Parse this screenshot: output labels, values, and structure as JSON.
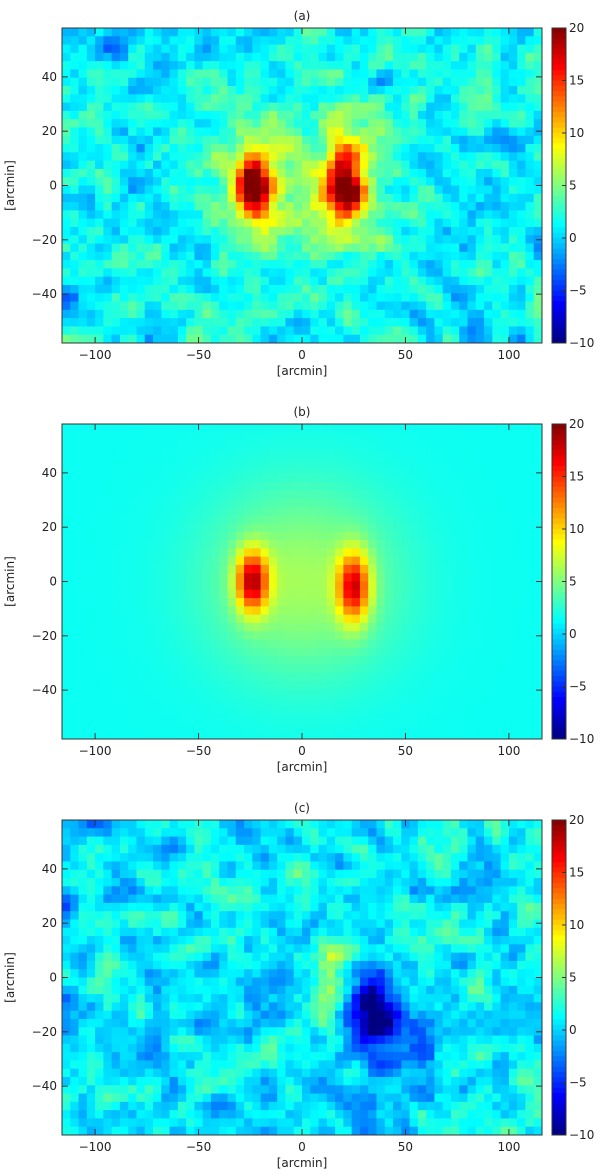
{
  "chart_data": [
    {
      "type": "heatmap",
      "title": "(a)",
      "xlabel": "[arcmin]",
      "ylabel": "[arcmin]",
      "xlim": [
        -116,
        116
      ],
      "ylim": [
        -58,
        58
      ],
      "x_ticks": [
        -100,
        -50,
        0,
        50,
        100
      ],
      "y_ticks": [
        -40,
        -20,
        0,
        20,
        40
      ],
      "colorbar": {
        "min": -10,
        "max": 20,
        "ticks": [
          20,
          15,
          10,
          5,
          0,
          -5,
          -10
        ],
        "colormap": "jet"
      },
      "background_level": 1.0,
      "noise_amplitude": 3.5,
      "noise_seed": 11,
      "sources": [
        {
          "x": -24,
          "y": 0,
          "peak": 19,
          "sx": 6,
          "sy": 8
        },
        {
          "x": 21,
          "y": 0,
          "peak": 18,
          "sx": 7,
          "sy": 10
        },
        {
          "x": 0,
          "y": 2,
          "peak": 5,
          "sx": 30,
          "sy": 22
        }
      ]
    },
    {
      "type": "heatmap",
      "title": "(b)",
      "xlabel": "[arcmin]",
      "ylabel": "[arcmin]",
      "xlim": [
        -116,
        116
      ],
      "ylim": [
        -58,
        58
      ],
      "x_ticks": [
        -100,
        -50,
        0,
        50,
        100
      ],
      "y_ticks": [
        -40,
        -20,
        0,
        20,
        40
      ],
      "colorbar": {
        "min": -10,
        "max": 20,
        "ticks": [
          20,
          15,
          10,
          5,
          0,
          -5,
          -10
        ],
        "colormap": "jet"
      },
      "background_level": 1.6,
      "noise_amplitude": 0,
      "noise_seed": 0,
      "sources": [
        {
          "x": -24,
          "y": 0,
          "peak": 14,
          "sx": 5.5,
          "sy": 8
        },
        {
          "x": 25,
          "y": -2,
          "peak": 13,
          "sx": 5.5,
          "sy": 9
        },
        {
          "x": 0,
          "y": 0,
          "peak": 4.5,
          "sx": 32,
          "sy": 24
        }
      ]
    },
    {
      "type": "heatmap",
      "title": "(c)",
      "xlabel": "[arcmin]",
      "ylabel": "[arcmin]",
      "xlim": [
        -116,
        116
      ],
      "ylim": [
        -58,
        58
      ],
      "x_ticks": [
        -100,
        -50,
        0,
        50,
        100
      ],
      "y_ticks": [
        -40,
        -20,
        0,
        20,
        40
      ],
      "colorbar": {
        "min": -10,
        "max": 20,
        "ticks": [
          20,
          15,
          10,
          5,
          0,
          -5,
          -10
        ],
        "colormap": "jet"
      },
      "background_level": 0.8,
      "noise_amplitude": 3.5,
      "noise_seed": 37,
      "sources": [
        {
          "x": 14,
          "y": 0,
          "peak": 4.5,
          "sx": 6,
          "sy": 12
        },
        {
          "x": 33,
          "y": -12,
          "peak": -11,
          "sx": 8,
          "sy": 8
        },
        {
          "x": 45,
          "y": -25,
          "peak": -5,
          "sx": 12,
          "sy": 10
        }
      ]
    }
  ]
}
